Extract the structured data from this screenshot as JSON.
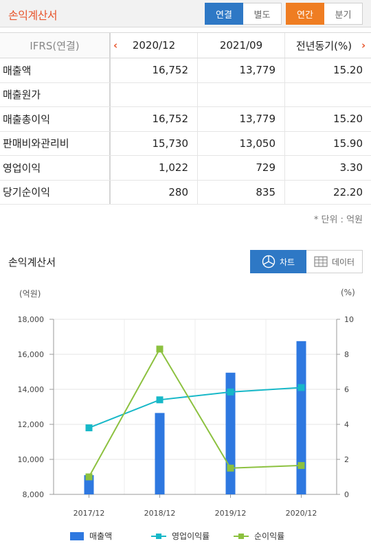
{
  "header": {
    "title": "손익계산서",
    "consolidation_toggle": [
      "연결",
      "별도"
    ],
    "period_toggle": [
      "연간",
      "분기"
    ]
  },
  "table": {
    "corner_label": "IFRS(연결)",
    "columns": [
      "2020/12",
      "2021/09",
      "전년동기(%)"
    ],
    "rows": [
      {
        "label": "매출액",
        "values": [
          "16,752",
          "13,779",
          "15.20"
        ]
      },
      {
        "label": "매출원가",
        "values": [
          "",
          "",
          ""
        ]
      },
      {
        "label": "매출총이익",
        "values": [
          "16,752",
          "13,779",
          "15.20"
        ]
      },
      {
        "label": "판매비와관리비",
        "values": [
          "15,730",
          "13,050",
          "15.90"
        ]
      },
      {
        "label": "영업이익",
        "values": [
          "1,022",
          "729",
          "3.30"
        ]
      },
      {
        "label": "당기순이익",
        "values": [
          "280",
          "835",
          "22.20"
        ]
      }
    ],
    "unit_note": "* 단위 : 억원"
  },
  "chart_section": {
    "title": "손익계산서",
    "view_toggle": [
      "차트",
      "데이터"
    ],
    "left_unit": "(억원)",
    "right_unit": "(%)"
  },
  "colors": {
    "accent_red": "#e8552c",
    "active_blue": "#2e78c5",
    "active_orange": "#ef7d22",
    "bar": "#2e78e0",
    "op_margin": "#17b8c8",
    "net_margin": "#8cc13f"
  },
  "chart_data": {
    "type": "bar",
    "categories": [
      "2017/12",
      "2018/12",
      "2019/12",
      "2020/12"
    ],
    "series": [
      {
        "name": "매출액",
        "type": "bar",
        "axis": "left",
        "values": [
          9100,
          12650,
          14950,
          16752
        ]
      },
      {
        "name": "영업이익률",
        "type": "line",
        "axis": "right",
        "values": [
          3.8,
          5.4,
          5.85,
          6.1
        ]
      },
      {
        "name": "순이익률",
        "type": "line",
        "axis": "right",
        "values": [
          1.0,
          8.3,
          1.5,
          1.65
        ]
      }
    ],
    "left_axis": {
      "range": [
        8000,
        18000
      ],
      "ticks": [
        "8,000",
        "10,000",
        "12,000",
        "14,000",
        "16,000",
        "18,000"
      ]
    },
    "right_axis": {
      "range": [
        0,
        10
      ],
      "ticks": [
        "0",
        "2",
        "4",
        "6",
        "8",
        "10"
      ]
    },
    "grid": true,
    "legend_position": "bottom"
  }
}
